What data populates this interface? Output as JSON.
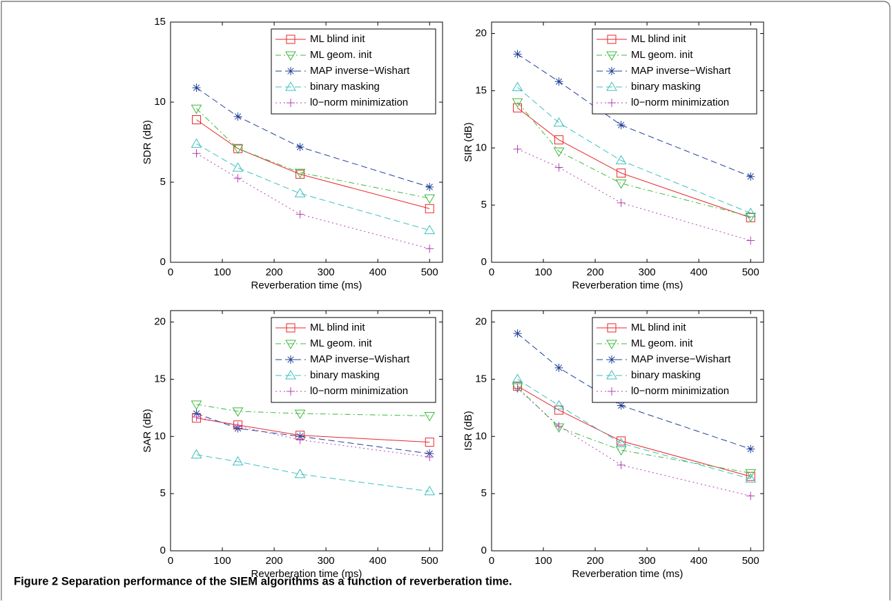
{
  "caption": "Figure 2 Separation performance of the SIEM algorithms as a function of reverberation time.",
  "chart_data": [
    {
      "type": "line",
      "xlabel": "Reverberation time (ms)",
      "ylabel": "SDR (dB)",
      "x": [
        50,
        130,
        250,
        500
      ],
      "xlim": [
        0,
        525
      ],
      "ylim": [
        0,
        15
      ],
      "xticks": [
        0,
        100,
        200,
        300,
        400,
        500
      ],
      "yticks": [
        0,
        5,
        10,
        15
      ],
      "legend": "upper right",
      "series": [
        {
          "name": "ML blind init",
          "color": "#e8262a",
          "marker": "square",
          "linestyle": "solid",
          "values": [
            8.9,
            7.1,
            5.5,
            3.35
          ]
        },
        {
          "name": "ML geom. init",
          "color": "#3cb83c",
          "marker": "triangle-down",
          "linestyle": "dashdot",
          "values": [
            9.6,
            7.1,
            5.6,
            4.0
          ]
        },
        {
          "name": "MAP inverse−Wishart",
          "color": "#1f3f99",
          "marker": "asterisk",
          "linestyle": "dashed",
          "values": [
            10.9,
            9.1,
            7.2,
            4.7
          ]
        },
        {
          "name": "binary masking",
          "color": "#3fbfbf",
          "marker": "triangle-up",
          "linestyle": "dashed",
          "values": [
            7.4,
            5.9,
            4.3,
            2.0
          ]
        },
        {
          "name": "l0−norm minimization",
          "color": "#b040b0",
          "marker": "plus",
          "linestyle": "dotted",
          "values": [
            6.8,
            5.25,
            3.0,
            0.85
          ]
        }
      ]
    },
    {
      "type": "line",
      "xlabel": "Reverberation time (ms)",
      "ylabel": "SIR (dB)",
      "x": [
        50,
        130,
        250,
        500
      ],
      "xlim": [
        0,
        525
      ],
      "ylim": [
        0,
        21
      ],
      "xticks": [
        0,
        100,
        200,
        300,
        400,
        500
      ],
      "yticks": [
        0,
        5,
        10,
        15,
        20
      ],
      "legend": "upper right",
      "series": [
        {
          "name": "ML blind init",
          "color": "#e8262a",
          "marker": "square",
          "linestyle": "solid",
          "values": [
            13.5,
            10.7,
            7.8,
            3.9
          ]
        },
        {
          "name": "ML geom. init",
          "color": "#3cb83c",
          "marker": "triangle-down",
          "linestyle": "dashdot",
          "values": [
            14.0,
            9.7,
            6.9,
            4.0
          ]
        },
        {
          "name": "MAP inverse−Wishart",
          "color": "#1f3f99",
          "marker": "asterisk",
          "linestyle": "dashed",
          "values": [
            18.2,
            15.8,
            12.0,
            7.5
          ]
        },
        {
          "name": "binary masking",
          "color": "#3fbfbf",
          "marker": "triangle-up",
          "linestyle": "dashed",
          "values": [
            15.3,
            12.2,
            8.9,
            4.3
          ]
        },
        {
          "name": "l0−norm minimization",
          "color": "#b040b0",
          "marker": "plus",
          "linestyle": "dotted",
          "values": [
            9.9,
            8.3,
            5.2,
            1.9
          ]
        }
      ]
    },
    {
      "type": "line",
      "xlabel": "Reverberation time (ms)",
      "ylabel": "SAR (dB)",
      "x": [
        50,
        130,
        250,
        500
      ],
      "xlim": [
        0,
        525
      ],
      "ylim": [
        0,
        21
      ],
      "xticks": [
        0,
        100,
        200,
        300,
        400,
        500
      ],
      "yticks": [
        0,
        5,
        10,
        15,
        20
      ],
      "legend": "upper right",
      "series": [
        {
          "name": "ML blind init",
          "color": "#e8262a",
          "marker": "square",
          "linestyle": "solid",
          "values": [
            11.6,
            11.0,
            10.1,
            9.5
          ]
        },
        {
          "name": "ML geom. init",
          "color": "#3cb83c",
          "marker": "triangle-down",
          "linestyle": "dashdot",
          "values": [
            12.8,
            12.2,
            12.0,
            11.8
          ]
        },
        {
          "name": "MAP inverse−Wishart",
          "color": "#1f3f99",
          "marker": "asterisk",
          "linestyle": "dashed",
          "values": [
            12.0,
            10.7,
            10.0,
            8.5
          ]
        },
        {
          "name": "binary masking",
          "color": "#3fbfbf",
          "marker": "triangle-up",
          "linestyle": "dashed",
          "values": [
            8.4,
            7.8,
            6.7,
            5.2
          ]
        },
        {
          "name": "l0−norm minimization",
          "color": "#b040b0",
          "marker": "plus",
          "linestyle": "dotted",
          "values": [
            11.7,
            10.9,
            9.7,
            8.2
          ]
        }
      ]
    },
    {
      "type": "line",
      "xlabel": "Reverberation time (ms)",
      "ylabel": "ISR (dB)",
      "x": [
        50,
        130,
        250,
        500
      ],
      "xlim": [
        0,
        525
      ],
      "ylim": [
        0,
        21
      ],
      "xticks": [
        0,
        100,
        200,
        300,
        400,
        500
      ],
      "yticks": [
        0,
        5,
        10,
        15,
        20
      ],
      "legend": "upper right",
      "series": [
        {
          "name": "ML blind init",
          "color": "#e8262a",
          "marker": "square",
          "linestyle": "solid",
          "values": [
            14.4,
            12.3,
            9.6,
            6.5
          ]
        },
        {
          "name": "ML geom. init",
          "color": "#3cb83c",
          "marker": "triangle-down",
          "linestyle": "dashdot",
          "values": [
            14.3,
            10.8,
            8.8,
            6.8
          ]
        },
        {
          "name": "MAP inverse−Wishart",
          "color": "#1f3f99",
          "marker": "asterisk",
          "linestyle": "dashed",
          "values": [
            19.0,
            16.0,
            12.7,
            8.9
          ]
        },
        {
          "name": "binary masking",
          "color": "#3fbfbf",
          "marker": "triangle-up",
          "linestyle": "dashed",
          "values": [
            15.0,
            12.7,
            9.4,
            6.3
          ]
        },
        {
          "name": "l0−norm minimization",
          "color": "#b040b0",
          "marker": "plus",
          "linestyle": "dotted",
          "values": [
            14.2,
            10.9,
            7.5,
            4.8
          ]
        }
      ]
    }
  ]
}
